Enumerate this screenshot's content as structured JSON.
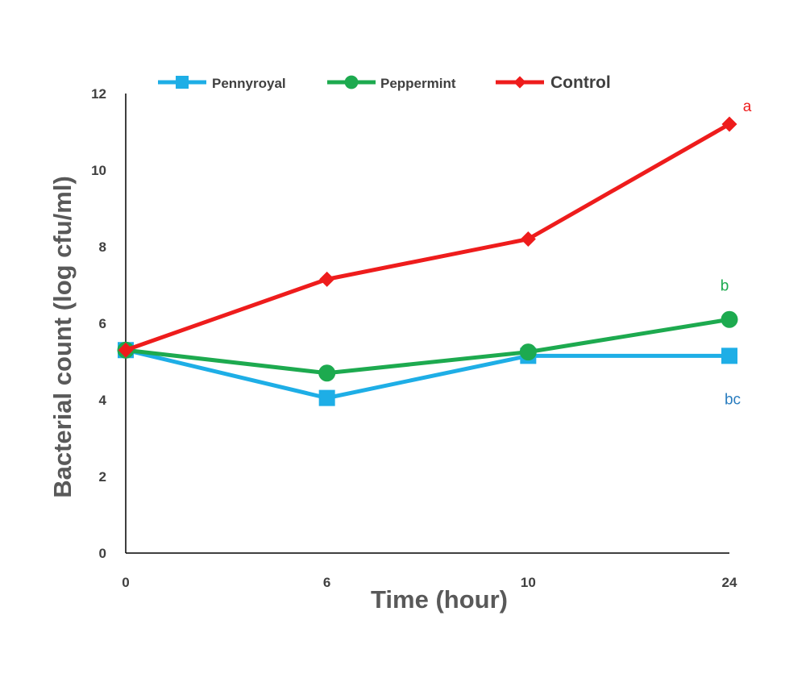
{
  "chart_data": {
    "type": "line",
    "title": "",
    "xlabel": "Time (hour)",
    "ylabel": "Bacterial count (log cfu/ml)",
    "x": [
      "0",
      "6",
      "10",
      "24"
    ],
    "ylim": [
      0,
      12
    ],
    "yticks": [
      0,
      2,
      4,
      6,
      8,
      10,
      12
    ],
    "grid": false,
    "legend_position": "top",
    "series": [
      {
        "name": "Pennyroyal",
        "color": "#1EAEE6",
        "marker": "square",
        "values": [
          5.3,
          4.05,
          5.15,
          5.15
        ]
      },
      {
        "name": "Peppermint",
        "color": "#1DAA4F",
        "marker": "circle",
        "values": [
          5.3,
          4.7,
          5.25,
          6.1
        ]
      },
      {
        "name": "Control",
        "color": "#EE1C1C",
        "marker": "diamond",
        "values": [
          5.3,
          7.15,
          8.2,
          11.2
        ]
      }
    ],
    "annotations": [
      {
        "text": "a",
        "series": "Control",
        "color": "#EE1C1C"
      },
      {
        "text": "b",
        "series": "Peppermint",
        "color": "#1DAA4F"
      },
      {
        "text": "bc",
        "series": "Pennyroyal",
        "color": "#2A7DBF"
      }
    ]
  }
}
